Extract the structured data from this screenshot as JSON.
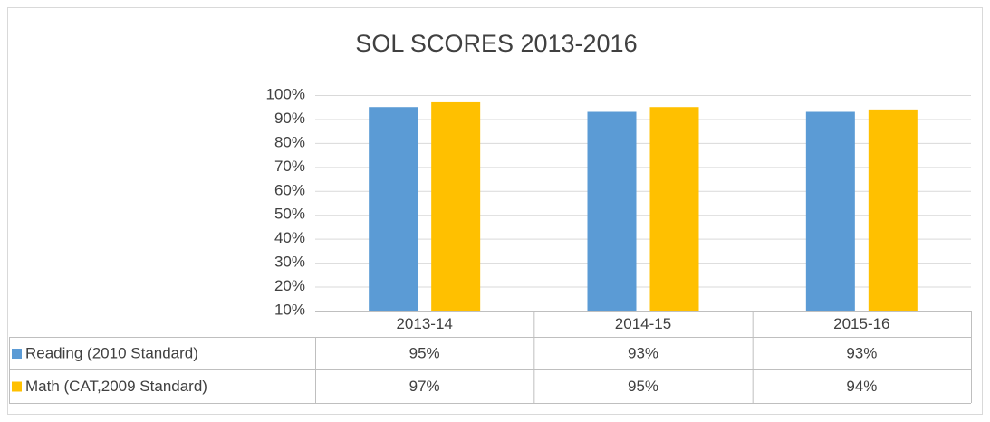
{
  "chart_data": {
    "type": "bar",
    "title": "SOL SCORES 2013-2016",
    "categories": [
      "2013-14",
      "2014-15",
      "2015-16"
    ],
    "series": [
      {
        "name": "Reading (2010 Standard)",
        "color": "#5b9bd5",
        "values": [
          95,
          93,
          93
        ],
        "value_labels": [
          "95%",
          "93%",
          "93%"
        ]
      },
      {
        "name": "Math (CAT,2009 Standard)",
        "color": "#ffc000",
        "values": [
          97,
          95,
          94
        ],
        "value_labels": [
          "97%",
          "95%",
          "94%"
        ]
      }
    ],
    "ylim": [
      10,
      100
    ],
    "yticks": [
      {
        "value": 10,
        "label": "10%"
      },
      {
        "value": 20,
        "label": "20%"
      },
      {
        "value": 30,
        "label": "30%"
      },
      {
        "value": 40,
        "label": "40%"
      },
      {
        "value": 50,
        "label": "50%"
      },
      {
        "value": 60,
        "label": "60%"
      },
      {
        "value": 70,
        "label": "70%"
      },
      {
        "value": 80,
        "label": "80%"
      },
      {
        "value": 90,
        "label": "90%"
      },
      {
        "value": 100,
        "label": "100%"
      }
    ],
    "grid": true
  }
}
